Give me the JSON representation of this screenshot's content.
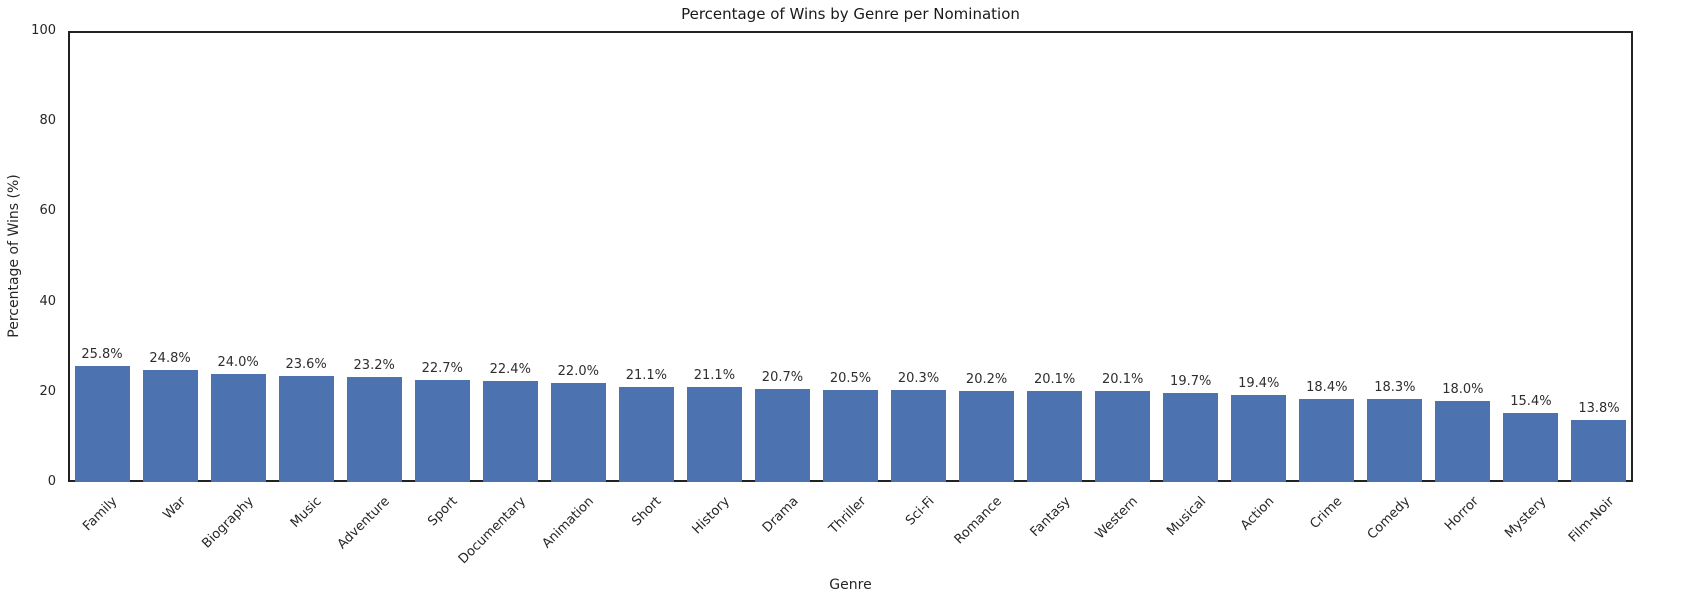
{
  "chart_data": {
    "type": "bar",
    "title": "Percentage of Wins by Genre per Nomination",
    "xlabel": "Genre",
    "ylabel": "Percentage of Wins (%)",
    "ylim": [
      0,
      100
    ],
    "yticks": [
      0,
      20,
      40,
      60,
      80,
      100
    ],
    "grid": false,
    "legend": false,
    "bar_color": "#4C72B0",
    "frame_color": "#222222",
    "text_color": "#262626",
    "categories": [
      "Family",
      "War",
      "Biography",
      "Music",
      "Adventure",
      "Sport",
      "Documentary",
      "Animation",
      "Short",
      "History",
      "Drama",
      "Thriller",
      "Sci-Fi",
      "Romance",
      "Fantasy",
      "Western",
      "Musical",
      "Action",
      "Crime",
      "Comedy",
      "Horror",
      "Mystery",
      "Film-Noir"
    ],
    "values": [
      25.8,
      24.8,
      24.0,
      23.6,
      23.2,
      22.7,
      22.4,
      22.0,
      21.1,
      21.1,
      20.7,
      20.5,
      20.3,
      20.2,
      20.1,
      20.1,
      19.7,
      19.4,
      18.4,
      18.3,
      18.0,
      15.4,
      13.8
    ],
    "value_labels": [
      "25.8%",
      "24.8%",
      "24.0%",
      "23.6%",
      "23.2%",
      "22.7%",
      "22.4%",
      "22.0%",
      "21.1%",
      "21.1%",
      "20.7%",
      "20.5%",
      "20.3%",
      "20.2%",
      "20.1%",
      "20.1%",
      "19.7%",
      "19.4%",
      "18.4%",
      "18.3%",
      "18.0%",
      "15.4%",
      "13.8%"
    ]
  }
}
